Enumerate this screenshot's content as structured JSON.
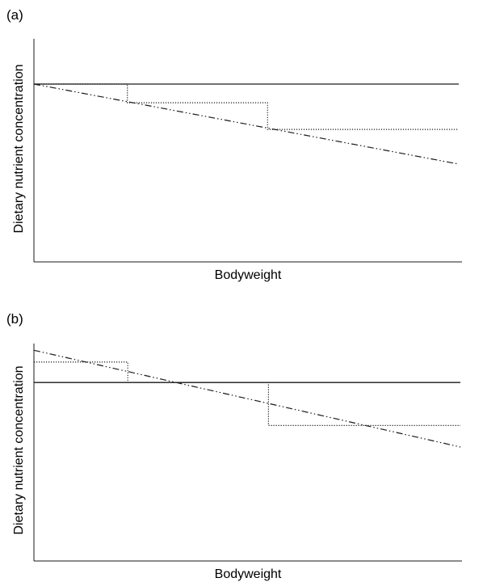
{
  "chart_data": [
    {
      "type": "line",
      "panel_label": "(a)",
      "xlabel": "Bodyweight",
      "ylabel": "Dietary nutrient concentration",
      "x_ticks": "none",
      "y_ticks": "none",
      "xlim": [
        0,
        100
      ],
      "ylim": [
        0,
        100
      ],
      "grid": false,
      "series": [
        {
          "style": "solid",
          "color": "#1a1a1a",
          "points": [
            [
              0,
              100
            ],
            [
              100,
              100
            ]
          ]
        },
        {
          "style": "dotted",
          "color": "#1a1a1a",
          "points": [
            [
              0,
              100
            ],
            [
              22,
              100
            ],
            [
              22,
              89.5
            ],
            [
              55,
              89.5
            ],
            [
              55,
              74.5
            ],
            [
              100,
              74.5
            ]
          ]
        },
        {
          "style": "dash-dot-dot",
          "color": "#1a1a1a",
          "points": [
            [
              0,
              100
            ],
            [
              100,
              55
            ]
          ]
        }
      ]
    },
    {
      "type": "line",
      "panel_label": "(b)",
      "xlabel": "Bodyweight",
      "ylabel": "Dietary nutrient concentration",
      "x_ticks": "none",
      "y_ticks": "none",
      "xlim": [
        0,
        100
      ],
      "ylim": [
        0,
        100
      ],
      "grid": false,
      "series": [
        {
          "style": "solid",
          "color": "#1a1a1a",
          "points": [
            [
              0,
              83
            ],
            [
              100,
              83
            ]
          ]
        },
        {
          "style": "dotted",
          "color": "#1a1a1a",
          "points": [
            [
              0,
              92.5
            ],
            [
              22,
              92.5
            ],
            [
              22,
              83
            ],
            [
              55,
              83
            ],
            [
              55,
              63
            ],
            [
              100,
              63
            ]
          ]
        },
        {
          "style": "dash-dot-dot",
          "color": "#1a1a1a",
          "points": [
            [
              0,
              98
            ],
            [
              100,
              53
            ]
          ]
        }
      ]
    }
  ]
}
